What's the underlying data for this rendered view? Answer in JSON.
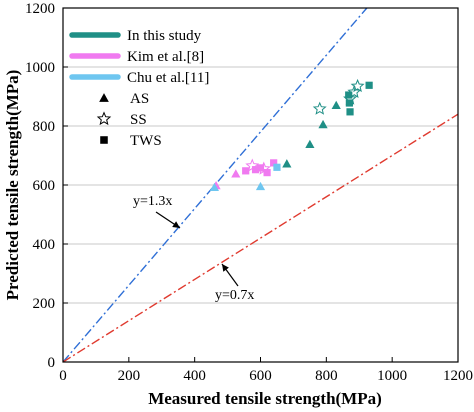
{
  "chart_data": {
    "type": "scatter",
    "xlabel": "Measured tensile strength(MPa)",
    "ylabel": "Predicted tensile strength(MPa)",
    "xlim": [
      0,
      1200
    ],
    "ylim": [
      0,
      1200
    ],
    "xticks": [
      "0",
      "200",
      "400",
      "600",
      "800",
      "1000",
      "1200"
    ],
    "yticks": [
      "0",
      "200",
      "400",
      "600",
      "800",
      "1000",
      "1200"
    ],
    "grid": "horizontal",
    "legend_position": "top-left",
    "legend": {
      "series": [
        {
          "name": "In this study",
          "color": "#1f8f86"
        },
        {
          "name": "Kim et al.[8]",
          "color": "#f07af0"
        },
        {
          "name": "Chu et al.[11]",
          "color": "#6ec6f0"
        }
      ],
      "markers": [
        {
          "name": "AS",
          "shape": "triangle"
        },
        {
          "name": "SS",
          "shape": "star"
        },
        {
          "name": "TWS",
          "shape": "square"
        }
      ]
    },
    "reference_lines": [
      {
        "label": "y=1.3x",
        "slope": 1.3,
        "color": "#2f6fd6",
        "style": "dash-dot"
      },
      {
        "label": "y=0.7x",
        "slope": 0.7,
        "color": "#e03a2f",
        "style": "dash-dot"
      }
    ],
    "series": [
      {
        "name": "In this study",
        "color": "#1f8f86",
        "points": [
          {
            "x": 680,
            "y": 672,
            "marker": "triangle"
          },
          {
            "x": 750,
            "y": 738,
            "marker": "triangle"
          },
          {
            "x": 790,
            "y": 805,
            "marker": "triangle"
          },
          {
            "x": 830,
            "y": 870,
            "marker": "triangle"
          },
          {
            "x": 780,
            "y": 858,
            "marker": "star"
          },
          {
            "x": 872,
            "y": 892,
            "marker": "star"
          },
          {
            "x": 885,
            "y": 915,
            "marker": "star"
          },
          {
            "x": 895,
            "y": 935,
            "marker": "star"
          },
          {
            "x": 868,
            "y": 905,
            "marker": "square"
          },
          {
            "x": 870,
            "y": 878,
            "marker": "square"
          },
          {
            "x": 872,
            "y": 848,
            "marker": "square"
          },
          {
            "x": 930,
            "y": 938,
            "marker": "square"
          }
        ]
      },
      {
        "name": "Kim et al.[8]",
        "color": "#f07af0",
        "points": [
          {
            "x": 465,
            "y": 598,
            "marker": "triangle"
          },
          {
            "x": 525,
            "y": 638,
            "marker": "triangle"
          },
          {
            "x": 555,
            "y": 648,
            "marker": "square"
          },
          {
            "x": 585,
            "y": 652,
            "marker": "square"
          },
          {
            "x": 600,
            "y": 658,
            "marker": "square"
          },
          {
            "x": 620,
            "y": 642,
            "marker": "square"
          },
          {
            "x": 640,
            "y": 675,
            "marker": "square"
          },
          {
            "x": 575,
            "y": 665,
            "marker": "star"
          },
          {
            "x": 610,
            "y": 655,
            "marker": "star"
          }
        ]
      },
      {
        "name": "Chu et al.[11]",
        "color": "#6ec6f0",
        "points": [
          {
            "x": 460,
            "y": 592,
            "marker": "triangle"
          },
          {
            "x": 600,
            "y": 595,
            "marker": "triangle"
          },
          {
            "x": 650,
            "y": 660,
            "marker": "square"
          }
        ]
      }
    ]
  }
}
